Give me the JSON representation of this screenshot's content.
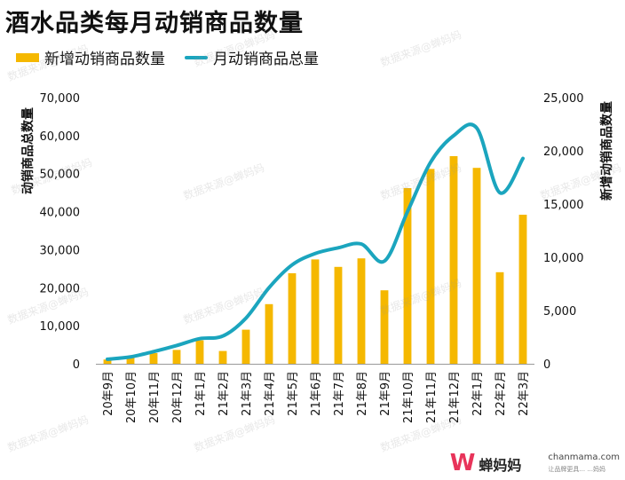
{
  "title": "酒水品类每月动销商品数量",
  "watermark": "数据来源@蝉妈妈",
  "logo": {
    "brand": "蝉妈妈",
    "site": "chanmama.com",
    "tagline": "让品牌更具...  ...妈妈"
  },
  "colors": {
    "bar": "#F5B800",
    "line": "#1BA5BE"
  },
  "chart_data": {
    "type": "bar",
    "categories": [
      "20年9月",
      "20年10月",
      "20年11月",
      "20年12月",
      "21年1月",
      "21年2月",
      "21年3月",
      "21年4月",
      "21年5月",
      "21年6月",
      "21年7月",
      "21年8月",
      "21年9月",
      "21年10月",
      "21年11月",
      "21年12月",
      "22年1月",
      "22年2月",
      "22年3月"
    ],
    "legend_position": "top-left",
    "grid": false,
    "series": [
      {
        "name": "新增动销商品数量",
        "type": "bar",
        "axis": "right",
        "values": [
          400,
          600,
          1000,
          1300,
          2200,
          1200,
          3200,
          5600,
          8500,
          9800,
          9100,
          9900,
          6900,
          16500,
          18300,
          19500,
          18400,
          8600,
          14000
        ]
      },
      {
        "name": "月动销商品总量",
        "type": "line",
        "axis": "left",
        "values": [
          1200,
          1800,
          3200,
          4800,
          6600,
          7300,
          12000,
          20000,
          26000,
          29000,
          30500,
          31500,
          27000,
          40000,
          53000,
          60000,
          62000,
          45000,
          54000
        ]
      }
    ],
    "left_axis": {
      "label": "动销商品总数量",
      "ylim": [
        0,
        70000
      ],
      "ticks": [
        "0",
        "10,000",
        "20,000",
        "30,000",
        "40,000",
        "50,000",
        "60,000",
        "70,000"
      ]
    },
    "right_axis": {
      "label": "新增动销商品数量",
      "ylim": [
        0,
        25000
      ],
      "ticks": [
        "0",
        "5,000",
        "10,000",
        "15,000",
        "20,000",
        "25,000"
      ]
    }
  }
}
